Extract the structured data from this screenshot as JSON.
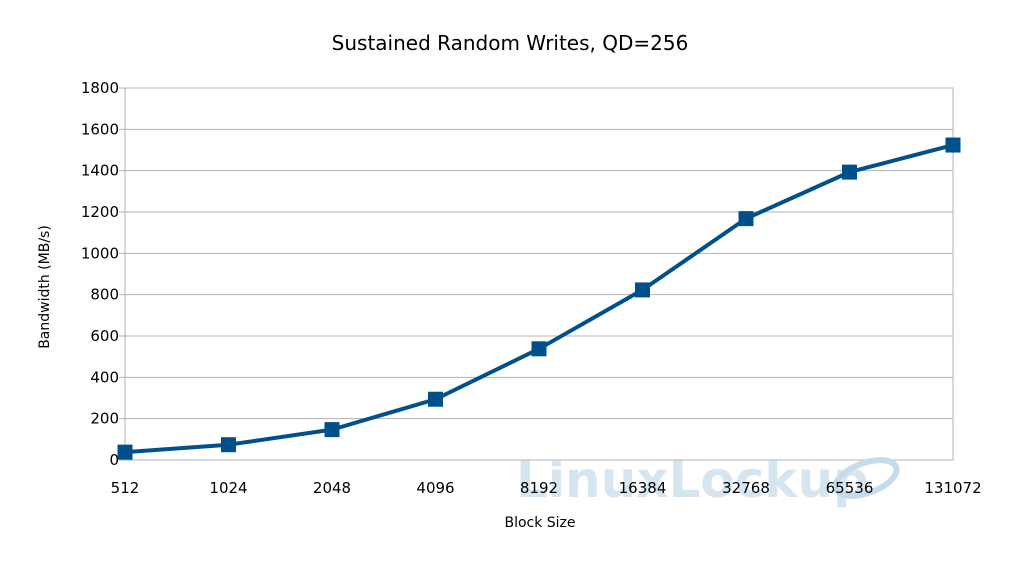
{
  "chart_data": {
    "type": "line",
    "title": "Sustained Random Writes, QD=256",
    "xlabel": "Block Size",
    "ylabel": "Bandwidth (MB/s)",
    "categories": [
      "512",
      "1024",
      "2048",
      "4096",
      "8192",
      "16384",
      "32768",
      "65536",
      "131072"
    ],
    "series": [
      {
        "values": [
          38,
          74,
          147,
          294,
          538,
          823,
          1168,
          1393,
          1524
        ],
        "color": "#00508c"
      }
    ],
    "ylim": [
      0,
      1800
    ],
    "yticks": [
      0,
      200,
      400,
      600,
      800,
      1000,
      1200,
      1400,
      1600,
      1800
    ],
    "grid": true,
    "legend": "none",
    "marker": "square"
  },
  "watermark": {
    "text": "LinuxLockup"
  }
}
